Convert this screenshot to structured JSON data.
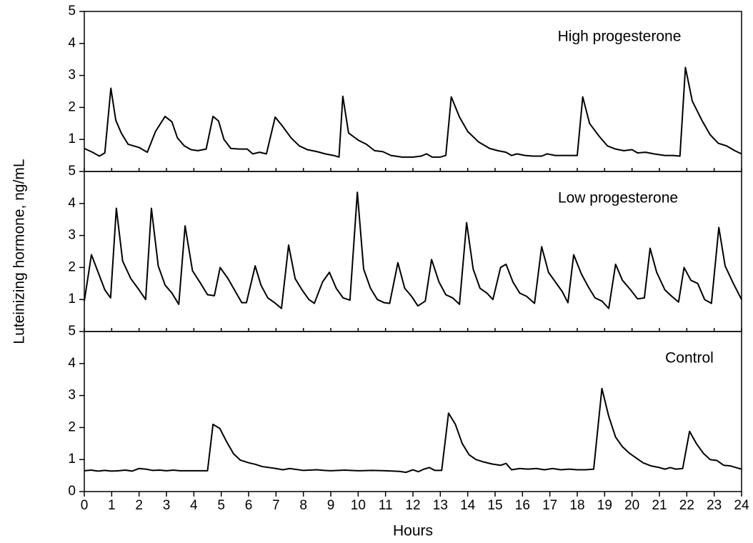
{
  "chart_data": [
    {
      "type": "line",
      "annotation": "High progesterone",
      "color": "#000000",
      "xlim": [
        0,
        24
      ],
      "ylim": [
        0,
        5
      ],
      "yticks": [
        1,
        2,
        3,
        4,
        5
      ],
      "x": [
        0,
        0.3,
        0.55,
        0.75,
        0.97,
        1.15,
        1.35,
        1.6,
        2.0,
        2.3,
        2.6,
        2.95,
        3.2,
        3.4,
        3.65,
        3.9,
        4.15,
        4.45,
        4.7,
        4.9,
        5.1,
        5.35,
        5.65,
        5.95,
        6.15,
        6.4,
        6.65,
        6.97,
        7.25,
        7.55,
        7.85,
        8.15,
        8.5,
        8.8,
        9.1,
        9.3,
        9.44,
        9.65,
        10.0,
        10.3,
        10.6,
        10.9,
        11.2,
        11.6,
        12.0,
        12.3,
        12.5,
        12.7,
        13.0,
        13.2,
        13.4,
        13.7,
        14.0,
        14.4,
        14.8,
        15.1,
        15.4,
        15.6,
        15.8,
        16.1,
        16.4,
        16.7,
        16.9,
        17.2,
        17.5,
        17.8,
        18.0,
        18.2,
        18.45,
        18.8,
        19.1,
        19.4,
        19.7,
        20.0,
        20.2,
        20.5,
        20.8,
        21.2,
        21.5,
        21.75,
        21.95,
        22.2,
        22.55,
        22.85,
        23.15,
        23.45,
        23.75,
        24
      ],
      "values": [
        0.72,
        0.6,
        0.48,
        0.58,
        2.6,
        1.6,
        1.2,
        0.85,
        0.75,
        0.6,
        1.25,
        1.72,
        1.55,
        1.05,
        0.8,
        0.68,
        0.65,
        0.7,
        1.72,
        1.58,
        1.0,
        0.72,
        0.7,
        0.7,
        0.55,
        0.6,
        0.55,
        1.7,
        1.4,
        1.05,
        0.8,
        0.68,
        0.62,
        0.55,
        0.5,
        0.45,
        2.35,
        1.2,
        0.98,
        0.85,
        0.65,
        0.62,
        0.5,
        0.45,
        0.45,
        0.48,
        0.55,
        0.45,
        0.45,
        0.5,
        2.33,
        1.7,
        1.25,
        0.92,
        0.72,
        0.65,
        0.6,
        0.5,
        0.55,
        0.5,
        0.48,
        0.48,
        0.55,
        0.5,
        0.5,
        0.5,
        0.5,
        2.33,
        1.5,
        1.1,
        0.8,
        0.7,
        0.65,
        0.68,
        0.58,
        0.6,
        0.55,
        0.5,
        0.5,
        0.48,
        3.25,
        2.2,
        1.6,
        1.15,
        0.88,
        0.8,
        0.65,
        0.55
      ]
    },
    {
      "type": "line",
      "annotation": "Low progesterone",
      "color": "#000000",
      "xlim": [
        0,
        24
      ],
      "ylim": [
        0,
        5
      ],
      "yticks": [
        1,
        2,
        3,
        4,
        5
      ],
      "y_label": "Luteinizing hormone, ng/mL",
      "x": [
        0,
        0.26,
        0.55,
        0.75,
        0.96,
        1.17,
        1.4,
        1.7,
        2.0,
        2.24,
        2.45,
        2.7,
        2.95,
        3.2,
        3.45,
        3.68,
        3.95,
        4.25,
        4.5,
        4.75,
        4.96,
        5.25,
        5.55,
        5.75,
        5.92,
        6.24,
        6.45,
        6.7,
        6.95,
        7.2,
        7.46,
        7.7,
        7.95,
        8.2,
        8.4,
        8.7,
        8.95,
        9.2,
        9.45,
        9.7,
        9.97,
        10.2,
        10.45,
        10.7,
        10.95,
        11.15,
        11.45,
        11.7,
        11.95,
        12.18,
        12.45,
        12.68,
        12.95,
        13.2,
        13.45,
        13.7,
        13.96,
        14.2,
        14.45,
        14.7,
        14.92,
        15.2,
        15.4,
        15.65,
        15.9,
        16.15,
        16.44,
        16.7,
        16.95,
        17.2,
        17.45,
        17.66,
        17.87,
        18.15,
        18.4,
        18.65,
        18.9,
        19.15,
        19.4,
        19.65,
        19.95,
        20.2,
        20.45,
        20.66,
        20.9,
        21.2,
        21.45,
        21.7,
        21.9,
        22.15,
        22.4,
        22.65,
        22.9,
        23.17,
        23.4,
        23.7,
        24
      ],
      "values": [
        0.95,
        2.4,
        1.75,
        1.3,
        1.05,
        3.85,
        2.2,
        1.65,
        1.3,
        1.0,
        3.85,
        2.05,
        1.45,
        1.2,
        0.85,
        3.3,
        1.9,
        1.5,
        1.15,
        1.12,
        2.0,
        1.65,
        1.2,
        0.9,
        0.9,
        2.05,
        1.45,
        1.05,
        0.9,
        0.72,
        2.7,
        1.65,
        1.3,
        1.0,
        0.88,
        1.55,
        1.85,
        1.35,
        1.05,
        0.98,
        4.35,
        1.95,
        1.35,
        1.0,
        0.9,
        0.88,
        2.15,
        1.35,
        1.1,
        0.8,
        0.95,
        2.25,
        1.55,
        1.15,
        1.05,
        0.85,
        3.4,
        1.95,
        1.35,
        1.2,
        1.0,
        2.0,
        2.1,
        1.55,
        1.2,
        1.1,
        0.88,
        2.65,
        1.85,
        1.55,
        1.25,
        0.9,
        2.4,
        1.8,
        1.4,
        1.05,
        0.95,
        0.72,
        2.1,
        1.6,
        1.3,
        1.02,
        1.05,
        2.6,
        1.85,
        1.3,
        1.1,
        0.92,
        2.0,
        1.6,
        1.5,
        1.0,
        0.88,
        3.25,
        2.05,
        1.5,
        1.0
      ]
    },
    {
      "type": "line",
      "annotation": "Control",
      "color": "#000000",
      "xlim": [
        0,
        24
      ],
      "ylim": [
        0,
        5
      ],
      "yticks": [
        0,
        1,
        2,
        3,
        4,
        5
      ],
      "xticks": [
        0,
        1,
        2,
        3,
        4,
        5,
        6,
        7,
        8,
        9,
        10,
        11,
        12,
        13,
        14,
        15,
        16,
        17,
        18,
        19,
        20,
        21,
        22,
        23,
        24
      ],
      "x_label": "Hours",
      "x": [
        0,
        0.25,
        0.5,
        0.75,
        1,
        1.25,
        1.5,
        1.75,
        2,
        2.25,
        2.5,
        2.75,
        3,
        3.25,
        3.5,
        4,
        4.5,
        4.7,
        4.95,
        5.2,
        5.45,
        5.7,
        6.0,
        6.25,
        6.5,
        7.0,
        7.25,
        7.5,
        8,
        8.5,
        8.75,
        9,
        9.5,
        10,
        10.5,
        11,
        11.5,
        11.75,
        12.0,
        12.2,
        12.4,
        12.6,
        12.8,
        13.05,
        13.3,
        13.55,
        13.8,
        14.05,
        14.3,
        14.6,
        14.9,
        15.2,
        15.4,
        15.6,
        15.9,
        16.2,
        16.5,
        16.8,
        17.1,
        17.4,
        17.7,
        18.0,
        18.3,
        18.6,
        18.9,
        19.15,
        19.4,
        19.65,
        19.9,
        20.15,
        20.4,
        20.7,
        21.0,
        21.2,
        21.4,
        21.6,
        21.85,
        22.1,
        22.35,
        22.6,
        22.85,
        23.1,
        23.35,
        23.6,
        23.8,
        24
      ],
      "values": [
        0.65,
        0.67,
        0.64,
        0.66,
        0.64,
        0.65,
        0.67,
        0.64,
        0.72,
        0.7,
        0.66,
        0.67,
        0.65,
        0.67,
        0.65,
        0.65,
        0.65,
        2.1,
        1.97,
        1.55,
        1.18,
        0.98,
        0.9,
        0.85,
        0.78,
        0.72,
        0.68,
        0.72,
        0.66,
        0.68,
        0.66,
        0.65,
        0.67,
        0.65,
        0.66,
        0.65,
        0.63,
        0.6,
        0.68,
        0.62,
        0.7,
        0.75,
        0.66,
        0.66,
        2.45,
        2.1,
        1.5,
        1.15,
        1.0,
        0.92,
        0.86,
        0.82,
        0.88,
        0.68,
        0.72,
        0.7,
        0.72,
        0.68,
        0.72,
        0.68,
        0.7,
        0.68,
        0.68,
        0.7,
        3.22,
        2.35,
        1.7,
        1.4,
        1.2,
        1.05,
        0.9,
        0.8,
        0.75,
        0.7,
        0.75,
        0.7,
        0.72,
        1.88,
        1.5,
        1.2,
        1.0,
        0.97,
        0.82,
        0.8,
        0.75,
        0.7
      ]
    }
  ]
}
